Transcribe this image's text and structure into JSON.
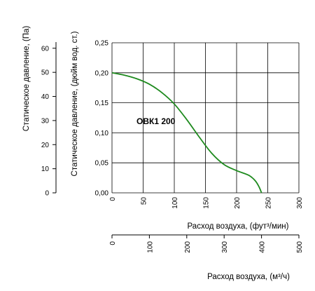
{
  "chart_data": {
    "type": "line",
    "title": "",
    "annotation": "ОВК1 200",
    "series": [
      {
        "name": "ОВК1 200",
        "color": "#1e8a1e",
        "x": [
          0,
          20,
          40,
          60,
          80,
          100,
          120,
          140,
          160,
          180,
          200,
          220,
          230,
          236,
          240
        ],
        "y": [
          0.2,
          0.196,
          0.19,
          0.181,
          0.167,
          0.148,
          0.122,
          0.093,
          0.066,
          0.047,
          0.037,
          0.029,
          0.02,
          0.01,
          0.0
        ]
      }
    ],
    "xlabel": "Расход воздуха, (фут³/мин)",
    "xlim": [
      0,
      300
    ],
    "xticks": [
      "0",
      "50",
      "100",
      "150",
      "200",
      "250",
      "300"
    ],
    "x2label": "Расход воздуха, (м³/ч)",
    "x2lim": [
      0,
      500
    ],
    "x2ticks": [
      "0",
      "100",
      "200",
      "300",
      "400",
      "500"
    ],
    "ylabel": "Статическое давление, (дюйм вод. ст.)",
    "ylim": [
      0,
      0.25
    ],
    "yticks": [
      "0,00",
      "0,05",
      "0,10",
      "0,15",
      "0,20",
      "0,25"
    ],
    "y2label": "Статическое давление, (Па)",
    "y2lim": [
      0,
      62.27
    ],
    "y2ticks": [
      "0",
      "10",
      "20",
      "30",
      "40",
      "50",
      "60"
    ],
    "grid": true,
    "line_color": "#1e8a1e"
  }
}
